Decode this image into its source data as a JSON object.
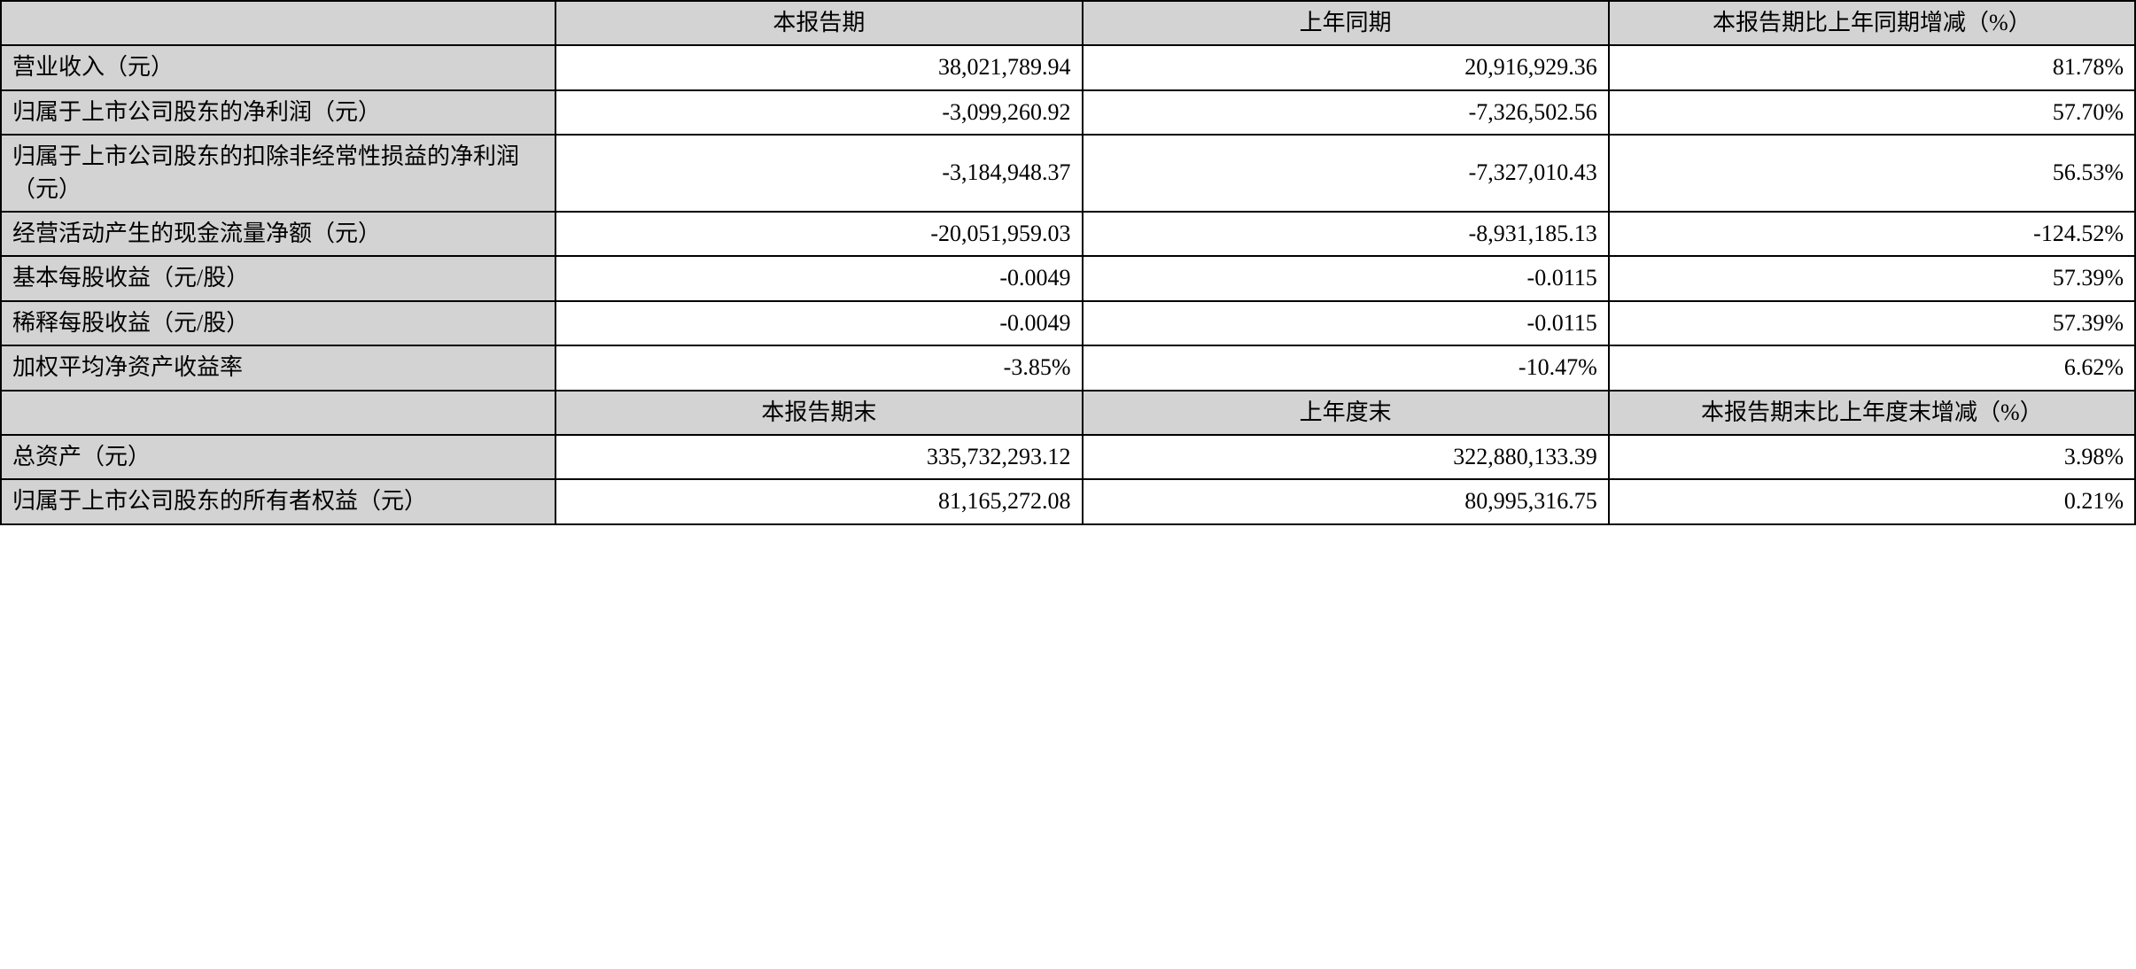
{
  "table": {
    "colors": {
      "header_bg": "#d3d3d3",
      "cell_bg": "#ffffff",
      "border": "#000000",
      "text": "#000000"
    },
    "fontsize": 26,
    "columns": {
      "col1_width_pct": 26,
      "col_data_width_pct": 24.67
    },
    "header1": {
      "blank": "",
      "col2": "本报告期",
      "col3": "上年同期",
      "col4": "本报告期比上年同期增减（%）"
    },
    "rows1": [
      {
        "label": "营业收入（元）",
        "v1": "38,021,789.94",
        "v2": "20,916,929.36",
        "v3": "81.78%"
      },
      {
        "label": "归属于上市公司股东的净利润（元）",
        "v1": "-3,099,260.92",
        "v2": "-7,326,502.56",
        "v3": "57.70%"
      },
      {
        "label": "归属于上市公司股东的扣除非经常性损益的净利润（元）",
        "v1": "-3,184,948.37",
        "v2": "-7,327,010.43",
        "v3": "56.53%"
      },
      {
        "label": "经营活动产生的现金流量净额（元）",
        "v1": "-20,051,959.03",
        "v2": "-8,931,185.13",
        "v3": "-124.52%"
      },
      {
        "label": "基本每股收益（元/股）",
        "v1": "-0.0049",
        "v2": "-0.0115",
        "v3": "57.39%"
      },
      {
        "label": "稀释每股收益（元/股）",
        "v1": "-0.0049",
        "v2": "-0.0115",
        "v3": "57.39%"
      },
      {
        "label": "加权平均净资产收益率",
        "v1": "-3.85%",
        "v2": "-10.47%",
        "v3": "6.62%"
      }
    ],
    "header2": {
      "blank": "",
      "col2": "本报告期末",
      "col3": "上年度末",
      "col4": "本报告期末比上年度末增减（%）"
    },
    "rows2": [
      {
        "label": "总资产（元）",
        "v1": "335,732,293.12",
        "v2": "322,880,133.39",
        "v3": "3.98%"
      },
      {
        "label": "归属于上市公司股东的所有者权益（元）",
        "v1": "81,165,272.08",
        "v2": "80,995,316.75",
        "v3": "0.21%"
      }
    ]
  }
}
